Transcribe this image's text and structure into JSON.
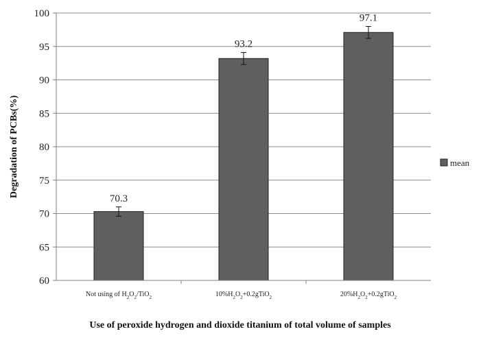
{
  "chart_data": {
    "type": "bar",
    "categories": [
      "Not using of H2O2/TiO2",
      "10%H2O2+0.2gTiO2",
      "20%H2O2+0.2gTiO2"
    ],
    "categories_display": [
      [
        {
          "t": "Not using of H"
        },
        {
          "t": "2",
          "sub": true
        },
        {
          "t": "O"
        },
        {
          "t": "2",
          "sub": true
        },
        {
          "t": "/TiO"
        },
        {
          "t": "2",
          "sub": true
        }
      ],
      [
        {
          "t": "10%H"
        },
        {
          "t": "2",
          "sub": true
        },
        {
          "t": "O"
        },
        {
          "t": "2",
          "sub": true
        },
        {
          "t": "+0.2gTiO"
        },
        {
          "t": "2",
          "sub": true
        }
      ],
      [
        {
          "t": "20%H"
        },
        {
          "t": "2",
          "sub": true
        },
        {
          "t": "O"
        },
        {
          "t": "2",
          "sub": true
        },
        {
          "t": "+0.2gTiO"
        },
        {
          "t": "2",
          "sub": true
        }
      ]
    ],
    "series": [
      {
        "name": "mean",
        "values": [
          70.3,
          93.2,
          97.1
        ],
        "error": [
          0.7,
          0.9,
          0.9
        ],
        "color": "#5f5f5f"
      }
    ],
    "data_labels": [
      "70.3",
      "93.2",
      "97.1"
    ],
    "ylim": [
      60,
      100
    ],
    "yticks": [
      60,
      65,
      70,
      75,
      80,
      85,
      90,
      95,
      100
    ],
    "ylabel": "Degradation of PCBs(%)",
    "xlabel": "Use of peroxide hydrogen and dioxide titanium of total volume of samples",
    "grid": true,
    "legend": "right",
    "colors": {
      "bar": "#5f5f5f",
      "bar_edge": "#222222",
      "grid": "#8c8c8c",
      "axis": "#7f7f7f"
    }
  }
}
